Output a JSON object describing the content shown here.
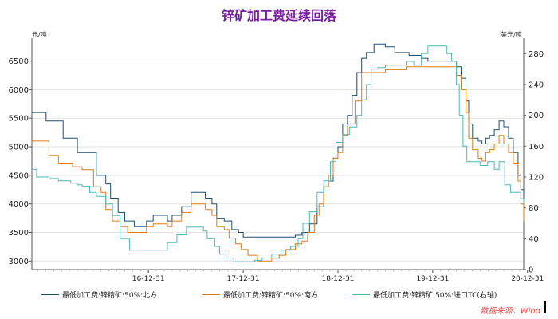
{
  "chart_data": {
    "type": "line",
    "title": "锌矿加工费延续回落",
    "left_axis": {
      "unit": "元/吨",
      "ylim": [
        2850,
        6900
      ],
      "ticks": [
        3000,
        3500,
        4000,
        4500,
        5000,
        5500,
        6000,
        6500
      ]
    },
    "right_axis": {
      "unit": "美元/吨",
      "ylim": [
        0,
        300
      ],
      "ticks": [
        0,
        40,
        80,
        120,
        160,
        200,
        240,
        280
      ]
    },
    "x_axis": {
      "xlim": [
        2015.77,
        2020.96
      ],
      "ticks": [
        {
          "label": "16-12-31",
          "pos": 2017.0
        },
        {
          "label": "17-12-31",
          "pos": 2018.0
        },
        {
          "label": "18-12-31",
          "pos": 2019.0
        },
        {
          "label": "19-12-31",
          "pos": 2020.0
        },
        {
          "label": "20-12-31",
          "pos": 2021.0
        }
      ]
    },
    "grid": "horizontal",
    "series": [
      {
        "name": "最低加工费:锌精矿:50%:北方",
        "axis": "left",
        "color": "#1b4f72",
        "points": [
          [
            2015.77,
            5600
          ],
          [
            2015.9,
            5600
          ],
          [
            2015.92,
            5450
          ],
          [
            2016.05,
            5450
          ],
          [
            2016.1,
            5150
          ],
          [
            2016.2,
            5150
          ],
          [
            2016.25,
            4900
          ],
          [
            2016.4,
            4900
          ],
          [
            2016.45,
            4500
          ],
          [
            2016.55,
            4350
          ],
          [
            2016.6,
            4100
          ],
          [
            2016.68,
            3850
          ],
          [
            2016.75,
            3700
          ],
          [
            2016.8,
            3700
          ],
          [
            2016.85,
            3600
          ],
          [
            2016.92,
            3600
          ],
          [
            2016.98,
            3700
          ],
          [
            2017.05,
            3800
          ],
          [
            2017.12,
            3800
          ],
          [
            2017.2,
            3700
          ],
          [
            2017.25,
            3800
          ],
          [
            2017.35,
            3950
          ],
          [
            2017.45,
            4200
          ],
          [
            2017.52,
            4200
          ],
          [
            2017.6,
            4100
          ],
          [
            2017.67,
            4000
          ],
          [
            2017.72,
            3750
          ],
          [
            2017.8,
            3700
          ],
          [
            2017.88,
            3550
          ],
          [
            2017.95,
            3500
          ],
          [
            2018.0,
            3420
          ],
          [
            2018.2,
            3420
          ],
          [
            2018.4,
            3420
          ],
          [
            2018.55,
            3450
          ],
          [
            2018.62,
            3500
          ],
          [
            2018.7,
            3650
          ],
          [
            2018.78,
            3950
          ],
          [
            2018.85,
            4300
          ],
          [
            2018.9,
            4400
          ],
          [
            2018.95,
            4800
          ],
          [
            2019.0,
            5000
          ],
          [
            2019.05,
            5400
          ],
          [
            2019.1,
            5550
          ],
          [
            2019.15,
            5900
          ],
          [
            2019.2,
            6300
          ],
          [
            2019.25,
            6550
          ],
          [
            2019.3,
            6650
          ],
          [
            2019.35,
            6650
          ],
          [
            2019.38,
            6800
          ],
          [
            2019.45,
            6800
          ],
          [
            2019.5,
            6750
          ],
          [
            2019.55,
            6750
          ],
          [
            2019.6,
            6650
          ],
          [
            2019.7,
            6650
          ],
          [
            2019.75,
            6600
          ],
          [
            2019.82,
            6600
          ],
          [
            2019.88,
            6550
          ],
          [
            2019.95,
            6500
          ],
          [
            2020.05,
            6500
          ],
          [
            2020.12,
            6500
          ],
          [
            2020.2,
            6500
          ],
          [
            2020.25,
            6400
          ],
          [
            2020.3,
            6200
          ],
          [
            2020.35,
            5800
          ],
          [
            2020.38,
            5400
          ],
          [
            2020.42,
            5150
          ],
          [
            2020.48,
            5100
          ],
          [
            2020.52,
            5050
          ],
          [
            2020.56,
            5150
          ],
          [
            2020.6,
            5200
          ],
          [
            2020.65,
            5300
          ],
          [
            2020.7,
            5450
          ],
          [
            2020.75,
            5350
          ],
          [
            2020.8,
            5150
          ],
          [
            2020.85,
            4900
          ],
          [
            2020.9,
            4500
          ],
          [
            2020.93,
            4250
          ],
          [
            2020.96,
            3900
          ]
        ]
      },
      {
        "name": "最低加工费:锌精矿:50%:南方",
        "axis": "left",
        "color": "#e07b12",
        "points": [
          [
            2015.77,
            5100
          ],
          [
            2015.9,
            5100
          ],
          [
            2015.95,
            4850
          ],
          [
            2016.05,
            4700
          ],
          [
            2016.15,
            4700
          ],
          [
            2016.2,
            4650
          ],
          [
            2016.3,
            4600
          ],
          [
            2016.38,
            4600
          ],
          [
            2016.42,
            4300
          ],
          [
            2016.5,
            4200
          ],
          [
            2016.55,
            3900
          ],
          [
            2016.62,
            3700
          ],
          [
            2016.7,
            3600
          ],
          [
            2016.78,
            3500
          ],
          [
            2016.85,
            3500
          ],
          [
            2016.92,
            3500
          ],
          [
            2016.98,
            3600
          ],
          [
            2017.05,
            3650
          ],
          [
            2017.12,
            3650
          ],
          [
            2017.2,
            3600
          ],
          [
            2017.25,
            3700
          ],
          [
            2017.35,
            3850
          ],
          [
            2017.45,
            4000
          ],
          [
            2017.52,
            4000
          ],
          [
            2017.6,
            3900
          ],
          [
            2017.67,
            3800
          ],
          [
            2017.72,
            3600
          ],
          [
            2017.8,
            3550
          ],
          [
            2017.85,
            3400
          ],
          [
            2017.92,
            3300
          ],
          [
            2017.98,
            3200
          ],
          [
            2018.05,
            3100
          ],
          [
            2018.15,
            3000
          ],
          [
            2018.22,
            3000
          ],
          [
            2018.3,
            3050
          ],
          [
            2018.38,
            3100
          ],
          [
            2018.45,
            3200
          ],
          [
            2018.55,
            3300
          ],
          [
            2018.62,
            3350
          ],
          [
            2018.68,
            3500
          ],
          [
            2018.75,
            3800
          ],
          [
            2018.8,
            4000
          ],
          [
            2018.85,
            4300
          ],
          [
            2018.9,
            4500
          ],
          [
            2018.95,
            4800
          ],
          [
            2019.0,
            4900
          ],
          [
            2019.05,
            5200
          ],
          [
            2019.1,
            5400
          ],
          [
            2019.18,
            5800
          ],
          [
            2019.25,
            6300
          ],
          [
            2019.3,
            6300
          ],
          [
            2019.38,
            6300
          ],
          [
            2019.5,
            6350
          ],
          [
            2019.6,
            6350
          ],
          [
            2019.72,
            6400
          ],
          [
            2019.85,
            6400
          ],
          [
            2019.95,
            6400
          ],
          [
            2020.1,
            6400
          ],
          [
            2020.2,
            6400
          ],
          [
            2020.25,
            6250
          ],
          [
            2020.3,
            6000
          ],
          [
            2020.35,
            5600
          ],
          [
            2020.38,
            5150
          ],
          [
            2020.42,
            4950
          ],
          [
            2020.48,
            4800
          ],
          [
            2020.52,
            4750
          ],
          [
            2020.56,
            4900
          ],
          [
            2020.6,
            4950
          ],
          [
            2020.65,
            5050
          ],
          [
            2020.7,
            5200
          ],
          [
            2020.75,
            5050
          ],
          [
            2020.8,
            4900
          ],
          [
            2020.85,
            4700
          ],
          [
            2020.9,
            4400
          ],
          [
            2020.93,
            4000
          ],
          [
            2020.96,
            3700
          ]
        ]
      },
      {
        "name": "最低加工费:锌精矿:50%:进口TC(右轴)",
        "axis": "right",
        "color": "#4bb8b8",
        "points": [
          [
            2015.77,
            130
          ],
          [
            2015.82,
            120
          ],
          [
            2015.9,
            120
          ],
          [
            2015.95,
            118
          ],
          [
            2016.05,
            115
          ],
          [
            2016.12,
            115
          ],
          [
            2016.18,
            112
          ],
          [
            2016.25,
            110
          ],
          [
            2016.3,
            108
          ],
          [
            2016.38,
            100
          ],
          [
            2016.45,
            95
          ],
          [
            2016.55,
            85
          ],
          [
            2016.62,
            70
          ],
          [
            2016.7,
            40
          ],
          [
            2016.8,
            25
          ],
          [
            2016.9,
            25
          ],
          [
            2017.0,
            25
          ],
          [
            2017.1,
            25
          ],
          [
            2017.2,
            35
          ],
          [
            2017.3,
            45
          ],
          [
            2017.4,
            55
          ],
          [
            2017.5,
            55
          ],
          [
            2017.58,
            50
          ],
          [
            2017.62,
            40
          ],
          [
            2017.7,
            30
          ],
          [
            2017.75,
            20
          ],
          [
            2017.82,
            15
          ],
          [
            2017.9,
            10
          ],
          [
            2018.0,
            10
          ],
          [
            2018.12,
            12
          ],
          [
            2018.2,
            15
          ],
          [
            2018.3,
            20
          ],
          [
            2018.4,
            25
          ],
          [
            2018.5,
            30
          ],
          [
            2018.58,
            40
          ],
          [
            2018.63,
            60
          ],
          [
            2018.7,
            75
          ],
          [
            2018.78,
            100
          ],
          [
            2018.85,
            115
          ],
          [
            2018.92,
            140
          ],
          [
            2018.98,
            165
          ],
          [
            2019.05,
            175
          ],
          [
            2019.12,
            185
          ],
          [
            2019.2,
            200
          ],
          [
            2019.25,
            220
          ],
          [
            2019.3,
            240
          ],
          [
            2019.35,
            260
          ],
          [
            2019.42,
            262
          ],
          [
            2019.5,
            265
          ],
          [
            2019.6,
            265
          ],
          [
            2019.72,
            270
          ],
          [
            2019.8,
            265
          ],
          [
            2019.88,
            280
          ],
          [
            2019.95,
            290
          ],
          [
            2020.1,
            290
          ],
          [
            2020.15,
            280
          ],
          [
            2020.2,
            270
          ],
          [
            2020.25,
            240
          ],
          [
            2020.28,
            200
          ],
          [
            2020.32,
            160
          ],
          [
            2020.36,
            140
          ],
          [
            2020.42,
            140
          ],
          [
            2020.5,
            135
          ],
          [
            2020.58,
            140
          ],
          [
            2020.65,
            130
          ],
          [
            2020.7,
            140
          ],
          [
            2020.76,
            110
          ],
          [
            2020.82,
            100
          ],
          [
            2020.88,
            100
          ],
          [
            2020.93,
            92
          ],
          [
            2020.96,
            85
          ]
        ]
      }
    ]
  },
  "source_label": "数据来源：Wind"
}
